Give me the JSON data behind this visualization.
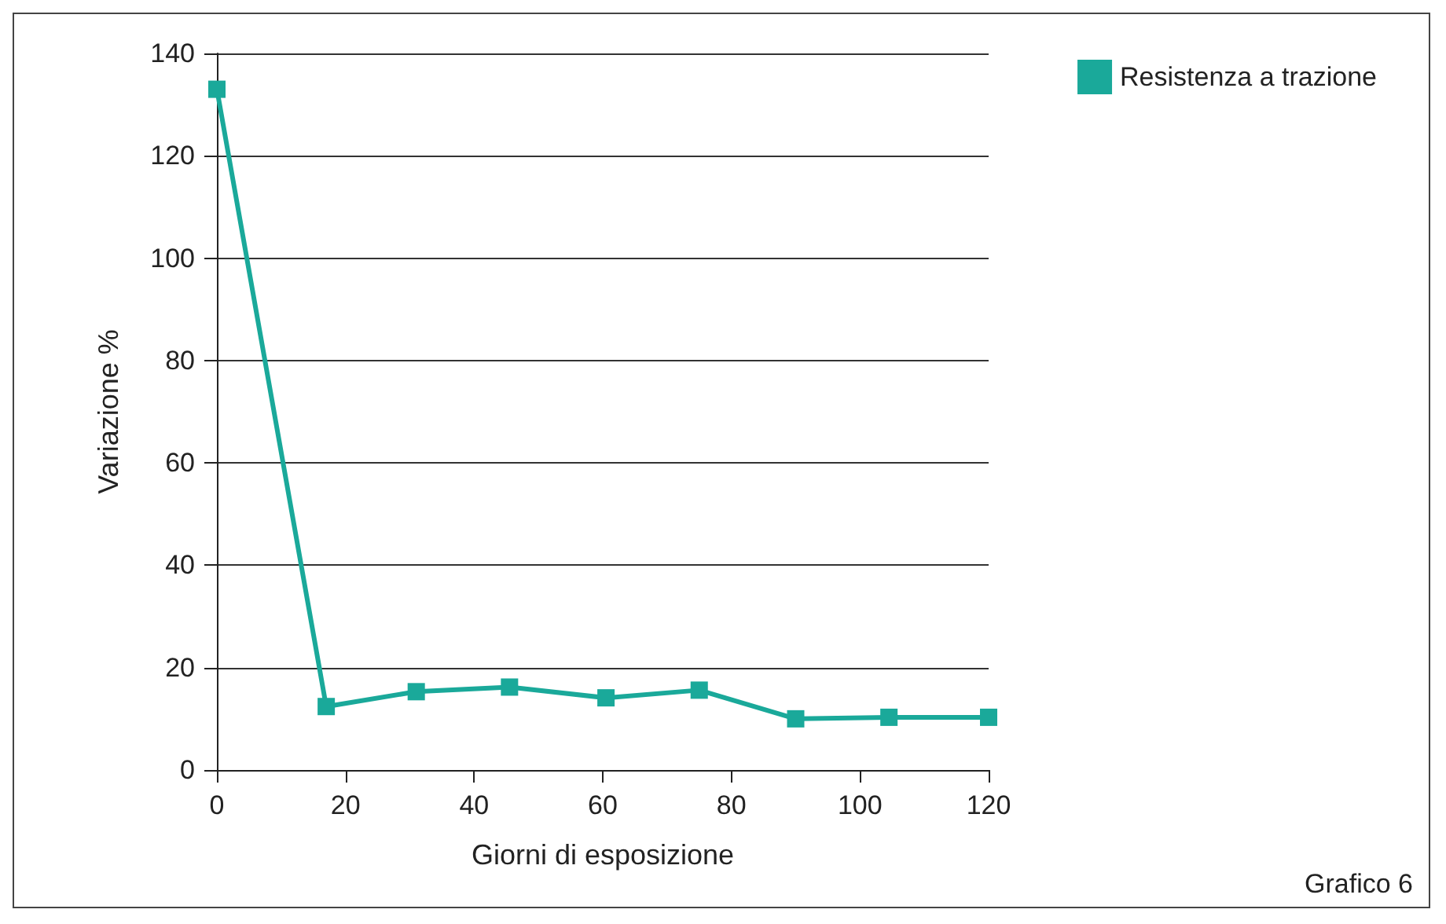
{
  "chart_data": {
    "type": "line",
    "xlabel": "Giorni di esposizione",
    "ylabel": "Variazione %",
    "x": [
      0,
      17,
      31,
      45.5,
      60.5,
      75,
      90,
      104.5,
      120
    ],
    "series": [
      {
        "name": "Resistenza a trazione",
        "color": "#1aa99a",
        "values": [
          133,
          12.4,
          15.3,
          16.2,
          14.1,
          15.6,
          10,
          10.3,
          10.3
        ]
      }
    ],
    "xlim": [
      0,
      120
    ],
    "xticks": [
      0,
      20,
      40,
      60,
      80,
      100,
      120
    ],
    "ylim": [
      0,
      140
    ],
    "yticks": [
      0,
      20,
      40,
      60,
      80,
      100,
      120,
      140
    ],
    "grid": "y",
    "legend": "top right",
    "marker": "square",
    "line_style": "solid",
    "annotations": [
      "Grafico 6"
    ]
  }
}
